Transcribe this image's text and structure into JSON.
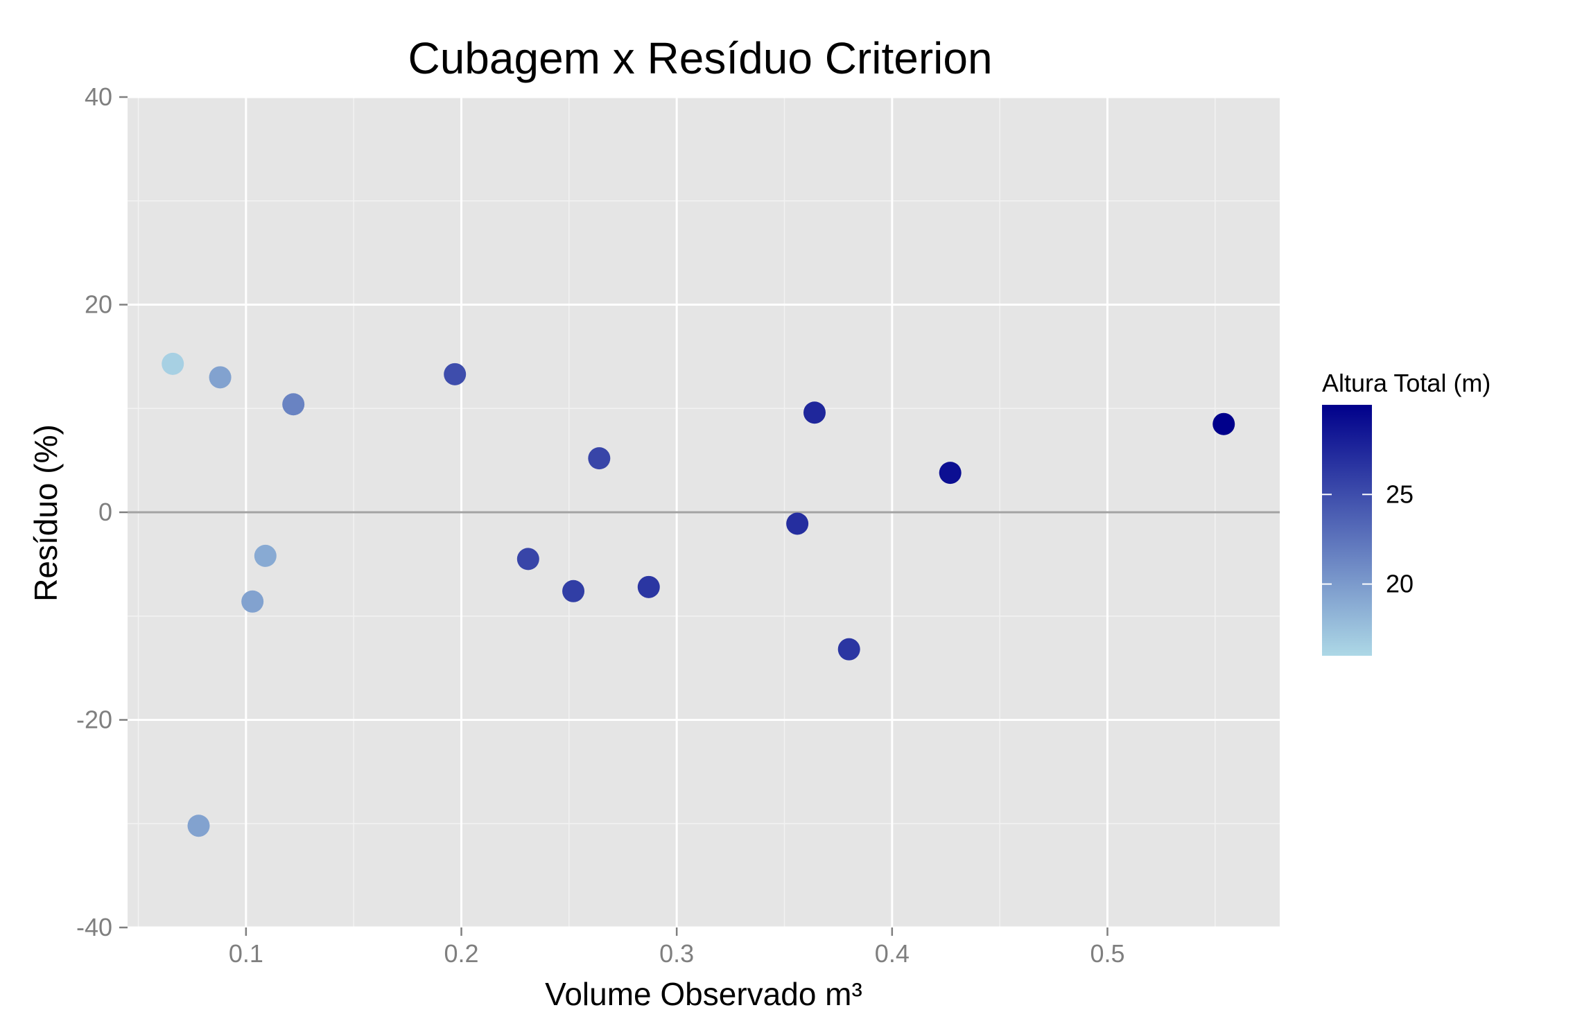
{
  "chart_data": {
    "type": "scatter",
    "title": "Cubagem x Resíduo Criterion",
    "xlabel": "Volume Observado m³",
    "ylabel": "Resíduo (%)",
    "xlim": [
      0.045,
      0.58
    ],
    "ylim": [
      -40,
      40
    ],
    "x_ticks": [
      0.1,
      0.2,
      0.3,
      0.4,
      0.5
    ],
    "x_tick_labels": [
      "0.1",
      "0.2",
      "0.3",
      "0.4",
      "0.5"
    ],
    "y_ticks": [
      -40,
      -20,
      0,
      20,
      40
    ],
    "y_tick_labels": [
      "-40",
      "-20",
      "0",
      "20",
      "40"
    ],
    "grid": true,
    "reference_line_y": 0,
    "colors": {
      "panel_background": "#e5e5e5",
      "grid_major": "#ffffff",
      "grid_minor": "#f2f2f2",
      "reference_line": "#a3a3a3",
      "low": "#add8e6",
      "high": "#00008b"
    },
    "legend": {
      "title": "Altura Total (m)",
      "placement": "right",
      "range": [
        16,
        30
      ],
      "ticks": [
        20,
        25
      ],
      "tick_labels": [
        "20",
        "25"
      ]
    },
    "points": [
      {
        "x": 0.066,
        "y": 14.3,
        "height": 16.5
      },
      {
        "x": 0.078,
        "y": -30.2,
        "height": 19.5
      },
      {
        "x": 0.088,
        "y": 13.0,
        "height": 19.5
      },
      {
        "x": 0.103,
        "y": -8.6,
        "height": 19.5
      },
      {
        "x": 0.109,
        "y": -4.2,
        "height": 19.0
      },
      {
        "x": 0.122,
        "y": 10.4,
        "height": 21.5
      },
      {
        "x": 0.197,
        "y": 13.3,
        "height": 25.0
      },
      {
        "x": 0.231,
        "y": -4.5,
        "height": 25.5
      },
      {
        "x": 0.252,
        "y": -7.6,
        "height": 26.0
      },
      {
        "x": 0.264,
        "y": 5.2,
        "height": 25.5
      },
      {
        "x": 0.287,
        "y": -7.2,
        "height": 26.5
      },
      {
        "x": 0.356,
        "y": -1.1,
        "height": 27.0
      },
      {
        "x": 0.364,
        "y": 9.6,
        "height": 27.5
      },
      {
        "x": 0.38,
        "y": -13.2,
        "height": 26.5
      },
      {
        "x": 0.427,
        "y": 3.8,
        "height": 29.0
      },
      {
        "x": 0.554,
        "y": 8.5,
        "height": 30.0
      }
    ]
  }
}
